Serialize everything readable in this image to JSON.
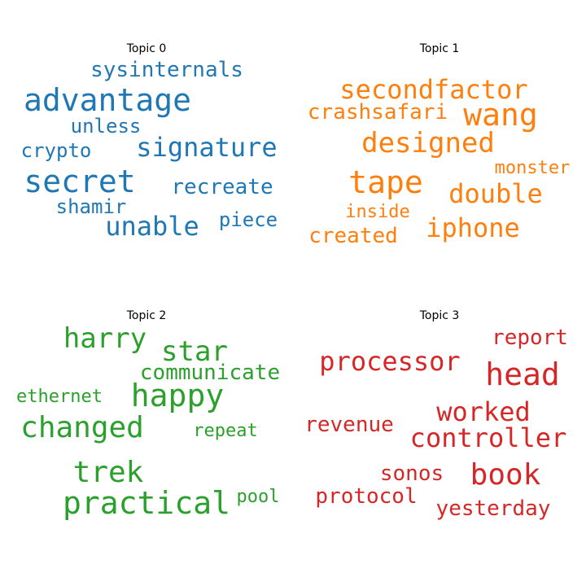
{
  "chart_data": {
    "type": "wordcloud",
    "panels": [
      {
        "title": "Topic 0",
        "color": "#1f77b4",
        "words": [
          {
            "text": "advantage",
            "weight": 1.0
          },
          {
            "text": "secret",
            "weight": 0.98
          },
          {
            "text": "signature",
            "weight": 0.8
          },
          {
            "text": "unable",
            "weight": 0.8
          },
          {
            "text": "sysinternals",
            "weight": 0.65
          },
          {
            "text": "recreate",
            "weight": 0.65
          },
          {
            "text": "unless",
            "weight": 0.6
          },
          {
            "text": "crypto",
            "weight": 0.6
          },
          {
            "text": "piece",
            "weight": 0.6
          },
          {
            "text": "shamir",
            "weight": 0.6
          }
        ]
      },
      {
        "title": "Topic 1",
        "color": "#ff7f0e",
        "words": [
          {
            "text": "tape",
            "weight": 1.0
          },
          {
            "text": "wang",
            "weight": 0.95
          },
          {
            "text": "designed",
            "weight": 0.85
          },
          {
            "text": "secondfactor",
            "weight": 0.82
          },
          {
            "text": "double",
            "weight": 0.8
          },
          {
            "text": "iphone",
            "weight": 0.8
          },
          {
            "text": "created",
            "weight": 0.68
          },
          {
            "text": "crashsafari",
            "weight": 0.65
          },
          {
            "text": "monster",
            "weight": 0.55
          },
          {
            "text": "inside",
            "weight": 0.55
          }
        ]
      },
      {
        "title": "Topic 2",
        "color": "#2ca02c",
        "words": [
          {
            "text": "practical",
            "weight": 1.0
          },
          {
            "text": "happy",
            "weight": 0.95
          },
          {
            "text": "changed",
            "weight": 0.92
          },
          {
            "text": "trek",
            "weight": 0.9
          },
          {
            "text": "harry",
            "weight": 0.88
          },
          {
            "text": "star",
            "weight": 0.88
          },
          {
            "text": "communicate",
            "weight": 0.65
          },
          {
            "text": "repeat",
            "weight": 0.55
          },
          {
            "text": "pool",
            "weight": 0.55
          },
          {
            "text": "ethernet",
            "weight": 0.55
          }
        ]
      },
      {
        "title": "Topic 3",
        "color": "#d62728",
        "words": [
          {
            "text": "head",
            "weight": 1.0
          },
          {
            "text": "book",
            "weight": 0.95
          },
          {
            "text": "controller",
            "weight": 0.82
          },
          {
            "text": "worked",
            "weight": 0.82
          },
          {
            "text": "processor",
            "weight": 0.8
          },
          {
            "text": "yesterday",
            "weight": 0.68
          },
          {
            "text": "report",
            "weight": 0.65
          },
          {
            "text": "protocol",
            "weight": 0.65
          },
          {
            "text": "revenue",
            "weight": 0.65
          },
          {
            "text": "sonos",
            "weight": 0.6
          }
        ]
      }
    ]
  }
}
